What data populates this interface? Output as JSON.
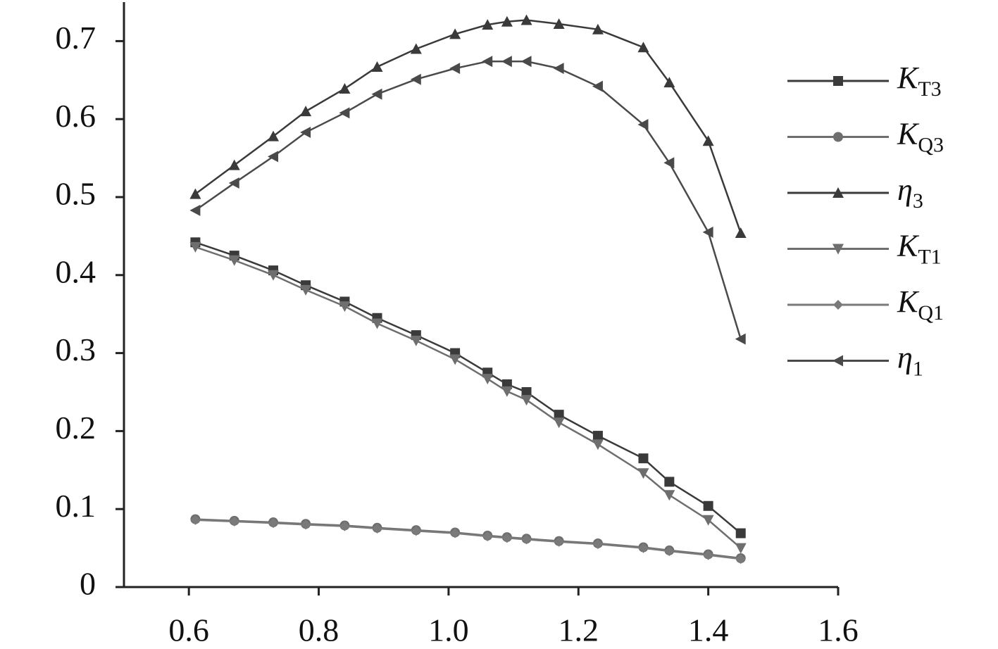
{
  "chart_data": {
    "type": "line",
    "x": [
      0.61,
      0.67,
      0.73,
      0.78,
      0.84,
      0.89,
      0.95,
      1.01,
      1.06,
      1.09,
      1.12,
      1.17,
      1.23,
      1.3,
      1.34,
      1.4,
      1.45
    ],
    "series": [
      {
        "name": "KT3",
        "color": "#3a3a3a",
        "marker": "square",
        "values": [
          0.442,
          0.425,
          0.406,
          0.387,
          0.366,
          0.345,
          0.323,
          0.3,
          0.275,
          0.26,
          0.25,
          0.221,
          0.194,
          0.165,
          0.135,
          0.104,
          0.069
        ]
      },
      {
        "name": "KQ3",
        "color": "#6e6e6e",
        "marker": "circle",
        "values": [
          0.087,
          0.085,
          0.083,
          0.081,
          0.079,
          0.076,
          0.073,
          0.07,
          0.066,
          0.064,
          0.062,
          0.059,
          0.056,
          0.051,
          0.047,
          0.042,
          0.037
        ]
      },
      {
        "name": "η3",
        "color": "#3a3a3a",
        "marker": "triangle-up",
        "values": [
          0.504,
          0.541,
          0.578,
          0.61,
          0.639,
          0.667,
          0.69,
          0.709,
          0.721,
          0.725,
          0.727,
          0.722,
          0.715,
          0.692,
          0.647,
          0.572,
          0.454
        ]
      },
      {
        "name": "KT1",
        "color": "#6e6e6e",
        "marker": "triangle-down",
        "values": [
          0.436,
          0.419,
          0.4,
          0.381,
          0.36,
          0.338,
          0.316,
          0.292,
          0.267,
          0.251,
          0.24,
          0.211,
          0.183,
          0.146,
          0.118,
          0.086,
          0.05
        ]
      },
      {
        "name": "KQ1",
        "color": "#7a7a7a",
        "marker": "diamond",
        "values": [
          0.086,
          0.084,
          0.082,
          0.08,
          0.078,
          0.075,
          0.072,
          0.069,
          0.065,
          0.063,
          0.061,
          0.058,
          0.055,
          0.05,
          0.046,
          0.041,
          0.036
        ]
      },
      {
        "name": "η1",
        "color": "#4a4a4a",
        "marker": "triangle-left",
        "values": [
          0.483,
          0.518,
          0.552,
          0.583,
          0.608,
          0.632,
          0.651,
          0.665,
          0.674,
          0.674,
          0.674,
          0.665,
          0.642,
          0.593,
          0.544,
          0.455,
          0.318
        ]
      }
    ],
    "xlim": [
      0.5,
      1.6
    ],
    "xticks": [
      0.6,
      0.8,
      {
        "value": 1.0,
        "label": "1.0"
      },
      1.2,
      1.4,
      1.6
    ],
    "ylim": [
      0,
      0.75
    ],
    "yticks": [
      0,
      0.1,
      0.2,
      0.3,
      0.4,
      0.5,
      0.6,
      0.7
    ],
    "legend": "right"
  }
}
